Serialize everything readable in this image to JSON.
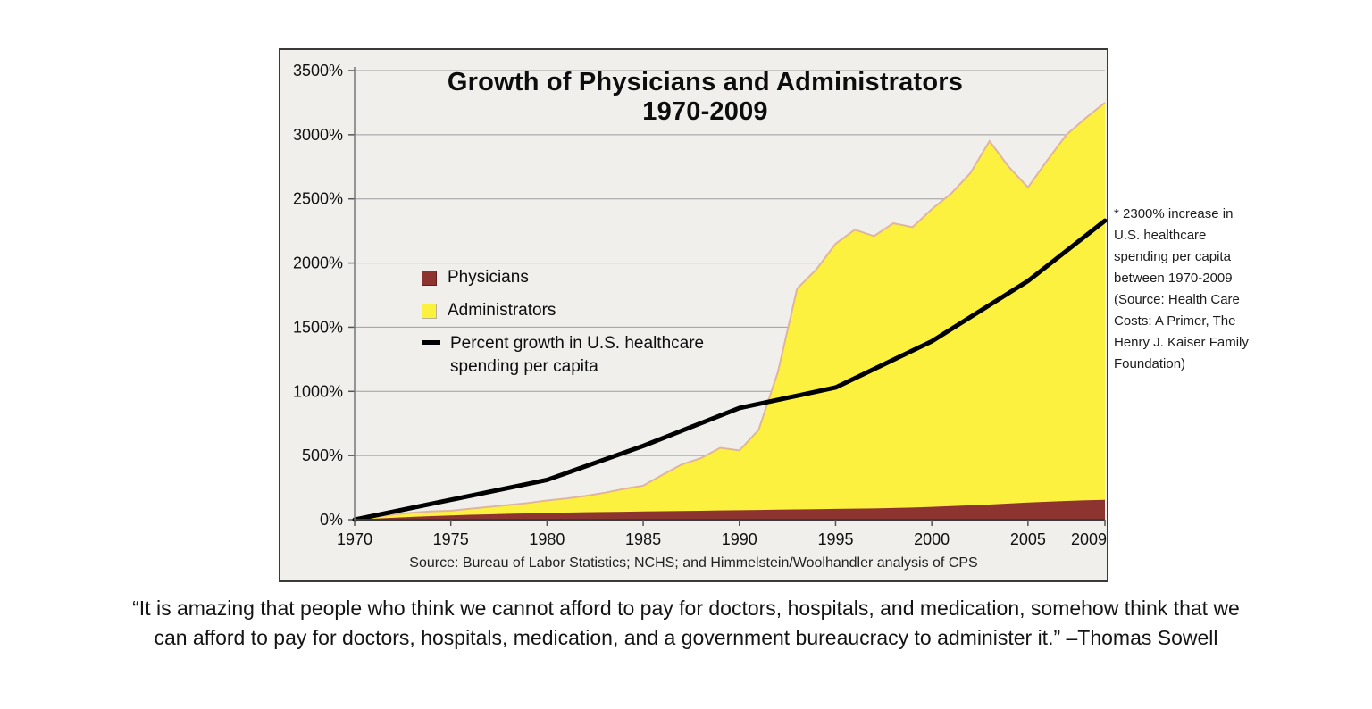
{
  "chart_data": {
    "type": "area",
    "title_line1": "Growth of Physicians and Administrators",
    "title_line2": "1970-2009",
    "source": "Source: Bureau of Labor Statistics; NCHS; and Himmelstein/Woolhandler analysis of CPS",
    "background_color": "#f0efec",
    "x_axis": {
      "min": 1970,
      "max": 2009,
      "ticks": [
        1970,
        1975,
        1980,
        1985,
        1990,
        1995,
        2000,
        2005,
        2009
      ],
      "tick_labels": [
        "1970",
        "1975",
        "1980",
        "1985",
        "1990",
        "1995",
        "2000",
        "2005",
        "2009"
      ]
    },
    "y_axis": {
      "min": 0,
      "max": 3500,
      "grid": true,
      "ticks": [
        0,
        500,
        1000,
        1500,
        2000,
        2500,
        3000,
        3500
      ],
      "tick_labels": [
        "0%",
        "500%",
        "1000%",
        "1500%",
        "2000%",
        "2500%",
        "3000%",
        "3500%"
      ]
    },
    "years": [
      1970,
      1971,
      1972,
      1973,
      1974,
      1975,
      1976,
      1977,
      1978,
      1979,
      1980,
      1981,
      1982,
      1983,
      1984,
      1985,
      1986,
      1987,
      1988,
      1989,
      1990,
      1991,
      1992,
      1993,
      1994,
      1995,
      1996,
      1997,
      1998,
      1999,
      2000,
      2001,
      2002,
      2003,
      2004,
      2005,
      2006,
      2007,
      2008,
      2009
    ],
    "series": [
      {
        "name": "Administrators",
        "type": "area",
        "color": "#fbf13e",
        "edge_color": "#dfb5a0",
        "values": [
          0,
          20,
          40,
          55,
          65,
          70,
          85,
          100,
          115,
          130,
          150,
          165,
          185,
          210,
          240,
          265,
          350,
          430,
          480,
          560,
          540,
          700,
          1150,
          1800,
          1950,
          2150,
          2260,
          2210,
          2310,
          2280,
          2420,
          2540,
          2700,
          2950,
          2750,
          2590,
          2800,
          3000,
          3130,
          3250
        ]
      },
      {
        "name": "Physicians",
        "type": "area",
        "color": "#8e3430",
        "values": [
          0,
          8,
          15,
          22,
          28,
          33,
          38,
          42,
          46,
          50,
          53,
          56,
          58,
          60,
          62,
          64,
          66,
          68,
          70,
          72,
          74,
          76,
          78,
          80,
          82,
          84,
          86,
          88,
          91,
          95,
          100,
          106,
          112,
          118,
          126,
          134,
          140,
          146,
          151,
          155
        ]
      },
      {
        "name": "Percent growth in U.S. healthcare spending per capita",
        "type": "line",
        "color": "#000000",
        "x": [
          1970,
          1975,
          1980,
          1985,
          1990,
          1995,
          2000,
          2005,
          2009
        ],
        "values": [
          0,
          155,
          310,
          575,
          870,
          1030,
          1390,
          1860,
          2330
        ]
      }
    ],
    "legend": {
      "position": "left-middle",
      "items": [
        {
          "label": "Physicians",
          "swatch": "#8e3430",
          "swatch_border": "#5f1f1c"
        },
        {
          "label": "Administrators",
          "swatch": "#fbf13e",
          "swatch_border": "#b9b294"
        },
        {
          "label": "Percent growth in U.S. healthcare spending per capita",
          "swatch": "line"
        }
      ]
    }
  },
  "annotation": {
    "text": "* 2300% increase in U.S. healthcare spending per capita between 1970-2009 (Source: Health Care Costs: A Primer, The Henry J. Kaiser Family Foundation)"
  },
  "quote": {
    "line1": "“It is amazing that people who think we cannot afford to pay for doctors, hospitals, and medication, somehow think that we",
    "line2": "can afford to pay for doctors, hospitals, medication, and a government bureaucracy to administer it.” –Thomas Sowell"
  }
}
